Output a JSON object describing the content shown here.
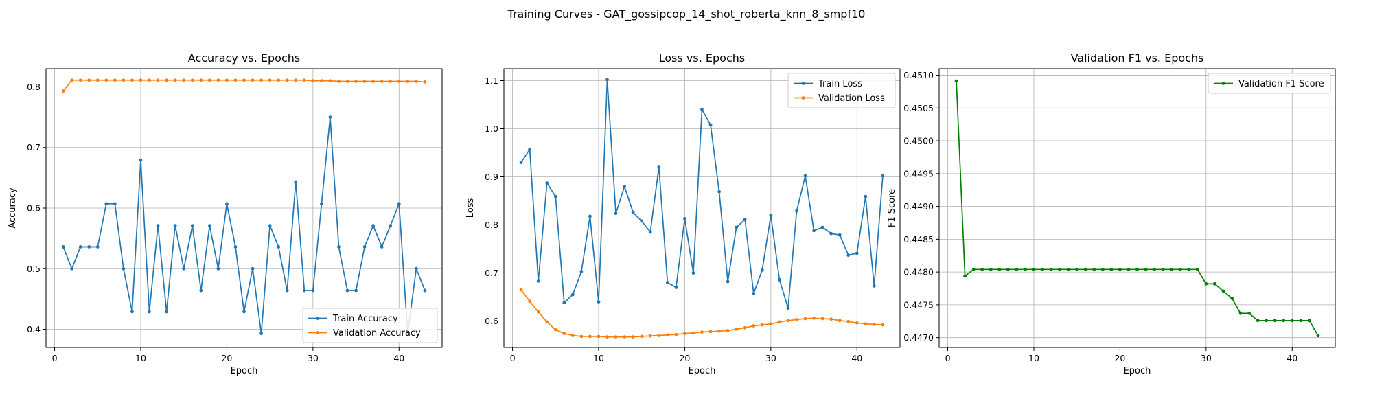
{
  "figure": {
    "suptitle": "Training Curves - GAT_gossipcop_14_shot_roberta_knn_8_smpf10"
  },
  "chart_data": [
    {
      "type": "line",
      "title": "Accuracy vs. Epochs",
      "xlabel": "Epoch",
      "ylabel": "Accuracy",
      "xlim": [
        -1,
        45
      ],
      "ylim": [
        0.37,
        0.83
      ],
      "xticks": [
        0,
        10,
        20,
        30,
        40
      ],
      "yticks": [
        0.4,
        0.5,
        0.6,
        0.7,
        0.8
      ],
      "grid": true,
      "legend": "lower right",
      "x": [
        1,
        2,
        3,
        4,
        5,
        6,
        7,
        8,
        9,
        10,
        11,
        12,
        13,
        14,
        15,
        16,
        17,
        18,
        19,
        20,
        21,
        22,
        23,
        24,
        25,
        26,
        27,
        28,
        29,
        30,
        31,
        32,
        33,
        34,
        35,
        36,
        37,
        38,
        39,
        40,
        41,
        42,
        43
      ],
      "series": [
        {
          "name": "Train Accuracy",
          "color": "#1f77b4",
          "values": [
            0.536,
            0.5,
            0.536,
            0.536,
            0.536,
            0.607,
            0.607,
            0.5,
            0.429,
            0.679,
            0.429,
            0.571,
            0.429,
            0.571,
            0.5,
            0.571,
            0.464,
            0.571,
            0.5,
            0.607,
            0.536,
            0.429,
            0.5,
            0.393,
            0.571,
            0.536,
            0.464,
            0.643,
            0.464,
            0.464,
            0.607,
            0.75,
            0.536,
            0.464,
            0.464,
            0.536,
            0.571,
            0.536,
            0.571,
            0.607,
            0.393,
            0.5,
            0.464
          ]
        },
        {
          "name": "Validation Accuracy",
          "color": "#ff7f0e",
          "values": [
            0.793,
            0.811,
            0.811,
            0.811,
            0.811,
            0.811,
            0.811,
            0.811,
            0.811,
            0.811,
            0.811,
            0.811,
            0.811,
            0.811,
            0.811,
            0.811,
            0.811,
            0.811,
            0.811,
            0.811,
            0.811,
            0.811,
            0.811,
            0.811,
            0.811,
            0.811,
            0.811,
            0.811,
            0.811,
            0.81,
            0.81,
            0.81,
            0.809,
            0.809,
            0.809,
            0.809,
            0.809,
            0.809,
            0.809,
            0.809,
            0.809,
            0.809,
            0.808
          ]
        }
      ]
    },
    {
      "type": "line",
      "title": "Loss vs. Epochs",
      "xlabel": "Epoch",
      "ylabel": "Loss",
      "xlim": [
        -1,
        45
      ],
      "ylim": [
        0.545,
        1.125
      ],
      "xticks": [
        0,
        10,
        20,
        30,
        40
      ],
      "yticks": [
        0.6,
        0.7,
        0.8,
        0.9,
        1.0,
        1.1
      ],
      "grid": true,
      "legend": "upper right",
      "x": [
        1,
        2,
        3,
        4,
        5,
        6,
        7,
        8,
        9,
        10,
        11,
        12,
        13,
        14,
        15,
        16,
        17,
        18,
        19,
        20,
        21,
        22,
        23,
        24,
        25,
        26,
        27,
        28,
        29,
        30,
        31,
        32,
        33,
        34,
        35,
        36,
        37,
        38,
        39,
        40,
        41,
        42,
        43
      ],
      "series": [
        {
          "name": "Train Loss",
          "color": "#1f77b4",
          "values": [
            0.93,
            0.957,
            0.683,
            0.887,
            0.859,
            0.638,
            0.655,
            0.703,
            0.818,
            0.64,
            1.102,
            0.824,
            0.88,
            0.826,
            0.808,
            0.785,
            0.92,
            0.68,
            0.67,
            0.813,
            0.7,
            1.04,
            1.008,
            0.869,
            0.682,
            0.795,
            0.811,
            0.657,
            0.706,
            0.82,
            0.686,
            0.627,
            0.829,
            0.902,
            0.788,
            0.795,
            0.782,
            0.779,
            0.737,
            0.741,
            0.859,
            0.673,
            0.902
          ]
        },
        {
          "name": "Validation Loss",
          "color": "#ff7f0e",
          "values": [
            0.665,
            0.641,
            0.619,
            0.598,
            0.582,
            0.574,
            0.57,
            0.568,
            0.568,
            0.568,
            0.567,
            0.567,
            0.567,
            0.567,
            0.568,
            0.569,
            0.57,
            0.571,
            0.572,
            0.574,
            0.575,
            0.577,
            0.578,
            0.579,
            0.58,
            0.583,
            0.586,
            0.59,
            0.592,
            0.594,
            0.598,
            0.601,
            0.603,
            0.605,
            0.606,
            0.605,
            0.604,
            0.601,
            0.599,
            0.596,
            0.594,
            0.593,
            0.592
          ]
        }
      ]
    },
    {
      "type": "line",
      "title": "Validation F1 vs. Epochs",
      "xlabel": "Epoch",
      "ylabel": "F1 Score",
      "xlim": [
        -1,
        45
      ],
      "ylim": [
        0.44685,
        0.4511
      ],
      "xticks": [
        0,
        10,
        20,
        30,
        40
      ],
      "yticks": [
        0.447,
        0.4475,
        0.448,
        0.4485,
        0.449,
        0.4495,
        0.45,
        0.4505,
        0.451
      ],
      "grid": true,
      "legend": "upper right",
      "x": [
        1,
        2,
        3,
        4,
        5,
        6,
        7,
        8,
        9,
        10,
        11,
        12,
        13,
        14,
        15,
        16,
        17,
        18,
        19,
        20,
        21,
        22,
        23,
        24,
        25,
        26,
        27,
        28,
        29,
        30,
        31,
        32,
        33,
        34,
        35,
        36,
        37,
        38,
        39,
        40,
        41,
        42,
        43
      ],
      "series": [
        {
          "name": "Validation F1 Score",
          "color": "#008000",
          "values": [
            0.45091,
            0.44794,
            0.44804,
            0.44804,
            0.44804,
            0.44804,
            0.44804,
            0.44804,
            0.44804,
            0.44804,
            0.44804,
            0.44804,
            0.44804,
            0.44804,
            0.44804,
            0.44804,
            0.44804,
            0.44804,
            0.44804,
            0.44804,
            0.44804,
            0.44804,
            0.44804,
            0.44804,
            0.44804,
            0.44804,
            0.44804,
            0.44804,
            0.44804,
            0.44782,
            0.44782,
            0.44771,
            0.4476,
            0.44737,
            0.44737,
            0.44726,
            0.44726,
            0.44726,
            0.44726,
            0.44726,
            0.44726,
            0.44726,
            0.44703
          ]
        }
      ]
    }
  ]
}
